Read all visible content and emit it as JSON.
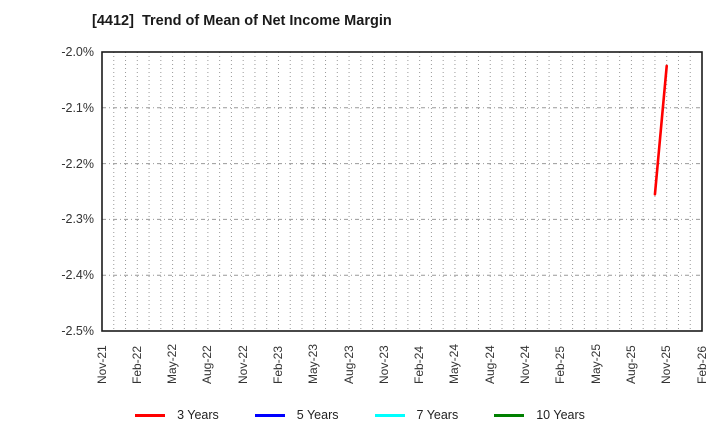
{
  "chart_data": {
    "type": "line",
    "title": "[4412]  Trend of Mean of Net Income Margin",
    "x_axis": {
      "tick_labels": [
        "Nov-21",
        "Feb-22",
        "May-22",
        "Aug-22",
        "Nov-22",
        "Feb-23",
        "May-23",
        "Aug-23",
        "Nov-23",
        "Feb-24",
        "May-24",
        "Aug-24",
        "Nov-24",
        "Feb-25",
        "May-25",
        "Aug-25",
        "Nov-25",
        "Feb-26"
      ],
      "start_month": "Nov-21",
      "end_month": "Feb-26",
      "months_total": 51,
      "tick_every_months": 3,
      "grid_every_months": 1
    },
    "y_axis": {
      "tick_labels": [
        "-2.0%",
        "-2.1%",
        "-2.2%",
        "-2.3%",
        "-2.4%",
        "-2.5%"
      ],
      "max": -2.0,
      "min": -2.5,
      "unit": "%"
    },
    "grid": true,
    "legend_position": "bottom",
    "series": [
      {
        "name": "3 Years",
        "color": "#ff0000",
        "points": [
          {
            "x": "Oct-25",
            "month_offset": 47,
            "y": -2.255
          },
          {
            "x": "Nov-25",
            "month_offset": 48,
            "y": -2.025
          }
        ]
      },
      {
        "name": "5 Years",
        "color": "#0000ff",
        "points": []
      },
      {
        "name": "7 Years",
        "color": "#00ffff",
        "points": []
      },
      {
        "name": "10 Years",
        "color": "#008000",
        "points": []
      }
    ],
    "colors": {
      "grid": "#999999",
      "axis_frame": "#1a1a1a",
      "tick_text": "#333333",
      "title_text": "#1a1a1a",
      "background": "#ffffff"
    }
  }
}
